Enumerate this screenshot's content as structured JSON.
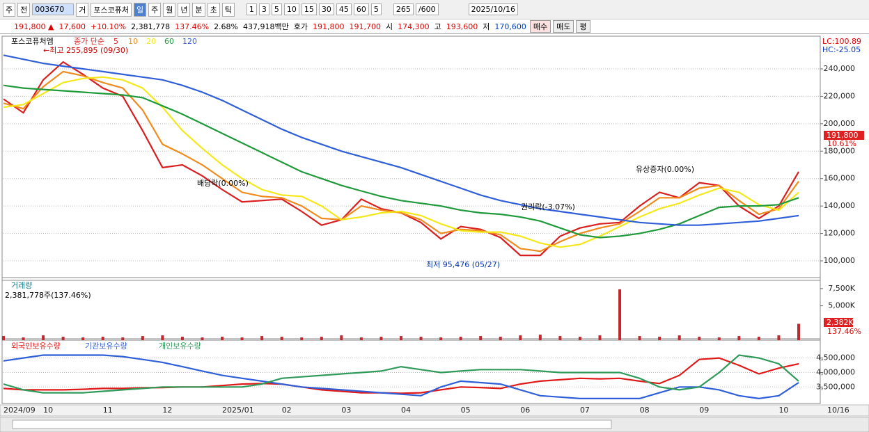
{
  "toolbar": {
    "items": [
      "주",
      "전",
      "003670",
      "거",
      "포스코퓨처",
      "일",
      "주",
      "월",
      "년",
      "분",
      "초",
      "틱",
      "1",
      "3",
      "5",
      "10",
      "15",
      "30",
      "45",
      "60",
      "5",
      "265",
      "/600",
      "2025/10/16"
    ]
  },
  "quote": {
    "items": [
      "191,800 ▲",
      "17,600",
      "+10.10%",
      "2,381,778",
      "137.46%",
      "2.68%",
      "437,918백만",
      "호가",
      "191,800",
      "191,700",
      "시",
      "174,300",
      "고",
      "193,600",
      "저",
      "170,600",
      "매수",
      "매도",
      "평"
    ]
  },
  "chart_data": [
    {
      "type": "line",
      "title": "포스코퓨처엠",
      "legend_label": "종가 단순",
      "ylim": [
        85800,
        260800
      ],
      "yticks": [
        {
          "value": 100000,
          "label": "100,000"
        },
        {
          "value": 120000,
          "label": "120,000"
        },
        {
          "value": 140000,
          "label": "140,000"
        },
        {
          "value": 160000,
          "label": "160,000"
        },
        {
          "value": 180000,
          "label": "180,000"
        },
        {
          "value": 200000,
          "label": "200,000"
        },
        {
          "value": 220000,
          "label": "220,000"
        },
        {
          "value": 240000,
          "label": "240,000"
        }
      ],
      "grid": true,
      "annotations": [
        "←최고 255,895 (09/30)",
        "배당락(0.00%)",
        "권리락(-3.07%)",
        "유상증자(0.00%)",
        "최저 95,476 (05/27)"
      ],
      "side_labels": [
        "LC:100.89",
        "HC:-25.05",
        "191,800",
        "10.61%"
      ],
      "series": [
        {
          "name": "5",
          "color": "#d81e1e",
          "values": [
            218000,
            208000,
            232000,
            245000,
            236000,
            226000,
            220000,
            195000,
            168000,
            170000,
            162000,
            152000,
            143000,
            144000,
            145000,
            136000,
            126000,
            130000,
            145000,
            138000,
            135000,
            128000,
            116000,
            125000,
            123000,
            117000,
            104000,
            104000,
            118000,
            124000,
            127000,
            128000,
            140000,
            150000,
            146000,
            157000,
            155000,
            140000,
            131000,
            140000,
            165000
          ]
        },
        {
          "name": "10",
          "color": "#f08a1c",
          "values": [
            215000,
            211000,
            227000,
            238000,
            235000,
            230000,
            226000,
            210000,
            185000,
            178000,
            170000,
            160000,
            150000,
            147000,
            146000,
            140000,
            131000,
            130000,
            140000,
            137000,
            135000,
            130000,
            120000,
            123000,
            122000,
            119000,
            109000,
            107000,
            114000,
            120000,
            124000,
            127000,
            136000,
            146000,
            146000,
            153000,
            155000,
            144000,
            134000,
            138000,
            158000
          ]
        },
        {
          "name": "20",
          "color": "#f4e81a",
          "values": [
            212000,
            214000,
            222000,
            230000,
            233000,
            234000,
            232000,
            226000,
            212000,
            195000,
            182000,
            170000,
            160000,
            152000,
            148000,
            147000,
            140000,
            130000,
            132000,
            135000,
            136000,
            133000,
            127000,
            122000,
            121000,
            121000,
            118000,
            113000,
            110000,
            112000,
            118000,
            125000,
            132000,
            138000,
            142000,
            148000,
            153000,
            150000,
            141000,
            137000,
            150000
          ]
        },
        {
          "name": "60",
          "color": "#1f9a3a",
          "values": [
            228000,
            226000,
            225000,
            224000,
            223000,
            222000,
            221000,
            219000,
            213000,
            207000,
            200000,
            193000,
            186000,
            179000,
            172000,
            165000,
            160000,
            155000,
            151000,
            147000,
            144000,
            142000,
            140000,
            137000,
            135000,
            134000,
            132000,
            129000,
            124000,
            119000,
            117000,
            118000,
            120000,
            123000,
            127000,
            133000,
            139000,
            140000,
            140000,
            141000,
            146000
          ]
        },
        {
          "name": "120",
          "color": "#2f5fd8",
          "values": [
            250000,
            247000,
            244000,
            242000,
            240000,
            238000,
            236000,
            234000,
            232000,
            228000,
            223000,
            217000,
            210000,
            203000,
            196000,
            190000,
            185000,
            180000,
            176000,
            172000,
            168000,
            163000,
            158000,
            153000,
            148000,
            144000,
            141000,
            138000,
            136000,
            134000,
            132000,
            130000,
            128000,
            127000,
            126000,
            126000,
            127000,
            128000,
            129000,
            131000,
            133000
          ]
        }
      ]
    },
    {
      "type": "bar",
      "title": "거래량",
      "subtitle": "2,381,778주(137.46%)",
      "side_labels": [
        "2,382K",
        "137.46%"
      ],
      "color": "#c0282d",
      "ylim": [
        0,
        8500000
      ],
      "yticks": [
        {
          "value": 5000000,
          "label": "5,000K"
        },
        {
          "value": 7500000,
          "label": "7,500K"
        }
      ],
      "values": [
        600000,
        400000,
        700000,
        500000,
        400000,
        500000,
        400000,
        600000,
        700000,
        500000,
        400000,
        500000,
        400000,
        600000,
        500000,
        400000,
        500000,
        700000,
        400000,
        500000,
        600000,
        500000,
        400000,
        500000,
        600000,
        500000,
        700000,
        800000,
        600000,
        500000,
        700000,
        7400000,
        600000,
        500000,
        700000,
        500000,
        400000,
        600000,
        500000,
        700000,
        2381778
      ]
    },
    {
      "type": "line",
      "x_end_label": "10/16",
      "categories": [
        "2024/09",
        null,
        "10",
        null,
        null,
        "11",
        null,
        null,
        "12",
        null,
        null,
        "2025/01",
        null,
        null,
        "02",
        null,
        null,
        "03",
        null,
        null,
        "04",
        null,
        null,
        "05",
        null,
        null,
        "06",
        null,
        null,
        "07",
        null,
        null,
        "08",
        null,
        null,
        "09",
        null,
        null,
        null,
        "10",
        null
      ],
      "ylim": [
        2930000,
        5020000
      ],
      "yticks": [
        {
          "value": 3500000,
          "label": "3,500,000"
        },
        {
          "value": 4000000,
          "label": "4,000,000"
        },
        {
          "value": 4500000,
          "label": "4,500,000"
        }
      ],
      "grid": true,
      "series": [
        {
          "name": "외국인보유수량",
          "color": "#e01818",
          "values": [
            3450000,
            3400000,
            3400000,
            3400000,
            3420000,
            3450000,
            3450000,
            3470000,
            3480000,
            3500000,
            3500000,
            3550000,
            3600000,
            3620000,
            3600000,
            3500000,
            3400000,
            3350000,
            3300000,
            3300000,
            3280000,
            3300000,
            3400000,
            3500000,
            3480000,
            3450000,
            3600000,
            3700000,
            3750000,
            3800000,
            3780000,
            3800000,
            3700000,
            3620000,
            3900000,
            4450000,
            4500000,
            4250000,
            3950000,
            4150000,
            4300000
          ]
        },
        {
          "name": "기관보유수량",
          "color": "#2f5fd8",
          "values": [
            4400000,
            4500000,
            4600000,
            4600000,
            4600000,
            4600000,
            4550000,
            4450000,
            4350000,
            4200000,
            4050000,
            3900000,
            3800000,
            3700000,
            3600000,
            3500000,
            3450000,
            3400000,
            3350000,
            3300000,
            3250000,
            3200000,
            3500000,
            3700000,
            3650000,
            3600000,
            3400000,
            3200000,
            3150000,
            3100000,
            3100000,
            3100000,
            3100000,
            3300000,
            3500000,
            3500000,
            3400000,
            3200000,
            3100000,
            3200000,
            3650000
          ]
        },
        {
          "name": "개인보유수량",
          "color": "#2f9a5a",
          "values": [
            3600000,
            3400000,
            3300000,
            3300000,
            3300000,
            3350000,
            3400000,
            3450000,
            3500000,
            3500000,
            3500000,
            3500000,
            3500000,
            3600000,
            3800000,
            3850000,
            3900000,
            3950000,
            4000000,
            4050000,
            4200000,
            4100000,
            4000000,
            4050000,
            4100000,
            4100000,
            4100000,
            4050000,
            4000000,
            4000000,
            4000000,
            4000000,
            3800000,
            3500000,
            3400000,
            3500000,
            4000000,
            4600000,
            4500000,
            4300000,
            3700000
          ]
        }
      ]
    }
  ]
}
